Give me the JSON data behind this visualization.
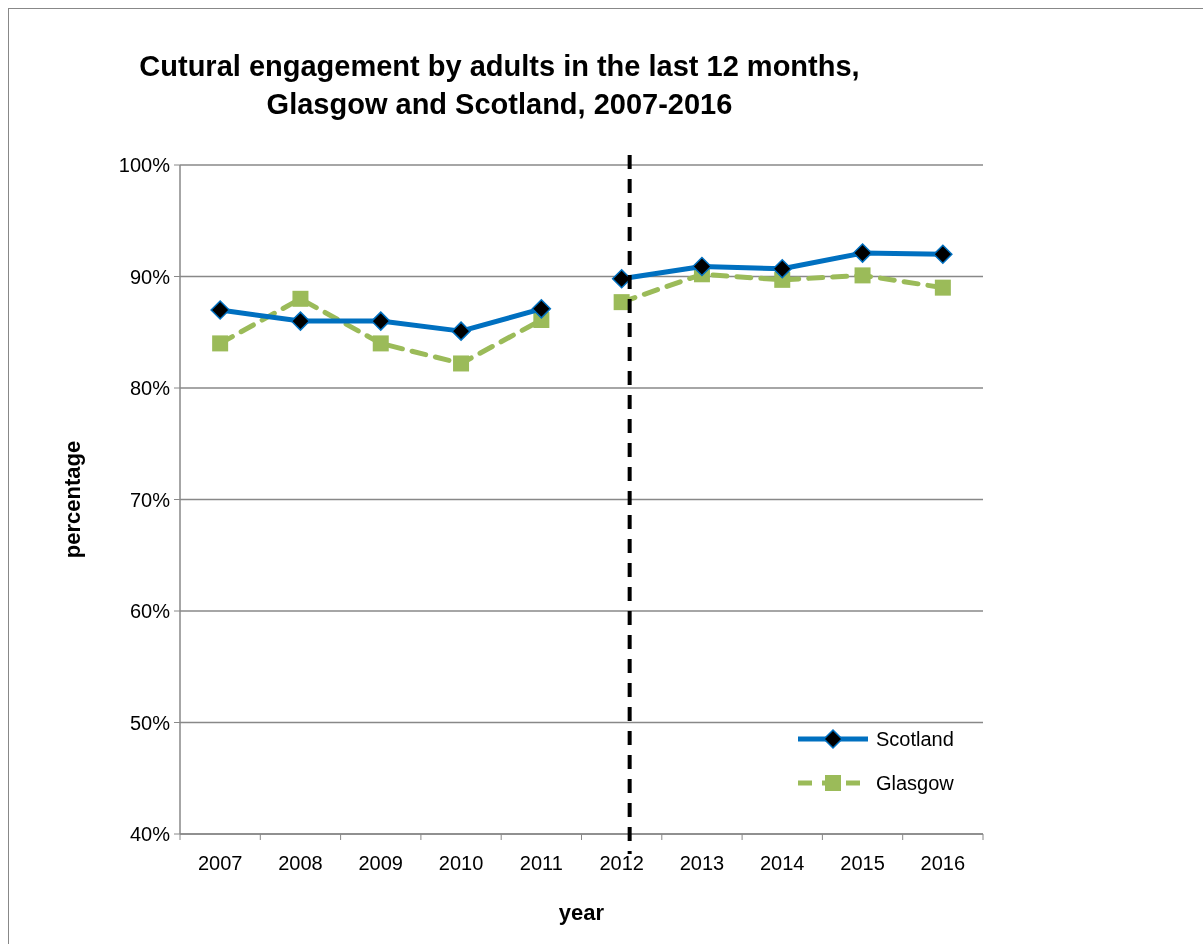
{
  "chart_data": {
    "type": "line",
    "title": "Cutural engagement by adults in the last 12 months, Glasgow and Scotland, 2007-2016",
    "xlabel": "year",
    "ylabel": "percentage",
    "categories": [
      "2007",
      "2008",
      "2009",
      "2010",
      "2011",
      "2012",
      "2013",
      "2014",
      "2015",
      "2016"
    ],
    "series": [
      {
        "name": "Scotland",
        "color": "#0070c0",
        "marker": "diamond",
        "line_style": "solid",
        "values": [
          87.0,
          86.0,
          86.0,
          85.1,
          87.1,
          89.8,
          90.9,
          90.7,
          92.1,
          92.0
        ]
      },
      {
        "name": "Glasgow",
        "color": "#9bbb59",
        "marker": "square",
        "line_style": "dashed",
        "values": [
          84.0,
          88.0,
          84.0,
          82.2,
          86.1,
          87.7,
          90.2,
          89.7,
          90.1,
          89.0
        ]
      }
    ],
    "ylim": [
      40,
      100
    ],
    "yticks": [
      {
        "value": 40,
        "label": "40%"
      },
      {
        "value": 50,
        "label": "50%"
      },
      {
        "value": 60,
        "label": "60%"
      },
      {
        "value": 70,
        "label": "70%"
      },
      {
        "value": 80,
        "label": "80%"
      },
      {
        "value": 90,
        "label": "90%"
      },
      {
        "value": 100,
        "label": "100%"
      }
    ],
    "grid": "y",
    "legend": "bottom right",
    "ref_lines": [
      {
        "axis": "x",
        "value": "2012",
        "color": "#000000",
        "line_style": "dashed"
      }
    ]
  }
}
